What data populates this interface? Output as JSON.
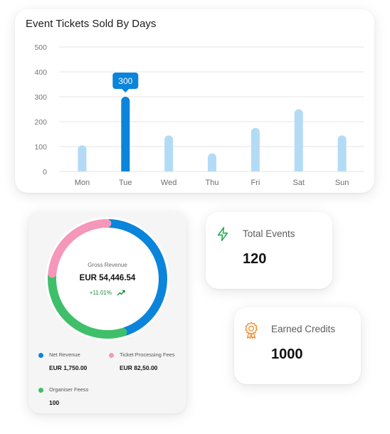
{
  "chart_data": {
    "type": "bar",
    "title": "Event Tickets Sold By Days",
    "categories": [
      "Mon",
      "Tue",
      "Wed",
      "Thu",
      "Fri",
      "Sat",
      "Sun"
    ],
    "values": [
      105,
      300,
      145,
      73,
      175,
      250,
      145
    ],
    "highlighted_category": "Tue",
    "tooltip_label": "300",
    "yticks": [
      "0",
      "100",
      "200",
      "300",
      "400",
      "500"
    ],
    "ylim": [
      0,
      500
    ],
    "grid": true,
    "colors": {
      "bar": "#b3dbf5",
      "highlight": "#0b84db",
      "tooltip": "#0b84db"
    }
  },
  "revenue": {
    "gross_label": "Gross Revenue",
    "gross_value": "EUR 54,446.54",
    "change": "+11.01%",
    "trend_icon": "trending-up-icon",
    "segments": [
      {
        "name": "Net Revenue",
        "fraction": 0.45,
        "color": "#0b84db"
      },
      {
        "name": "Organiser Feess",
        "fraction": 0.31,
        "color": "#3fbf6a"
      },
      {
        "name": "Ticket Processing Fees",
        "fraction": 0.24,
        "color": "#f497b8"
      }
    ],
    "legend": [
      {
        "label": "Net Revenue",
        "value": "EUR 1,750.00",
        "color": "#0b84db"
      },
      {
        "label": "Ticket Processing Fees",
        "value": "EUR 82,50.00",
        "color": "#f497b8"
      },
      {
        "label": "Organiser Feess",
        "value": "100",
        "color": "#3fbf6a"
      }
    ]
  },
  "stats": {
    "total_events": {
      "label": "Total Events",
      "value": "120",
      "icon": "lightning-icon",
      "icon_color": "#2fae5a"
    },
    "earned_credits": {
      "label": "Earned Credits",
      "value": "1000",
      "icon": "award-icon",
      "icon_color": "#f08a2c"
    }
  }
}
